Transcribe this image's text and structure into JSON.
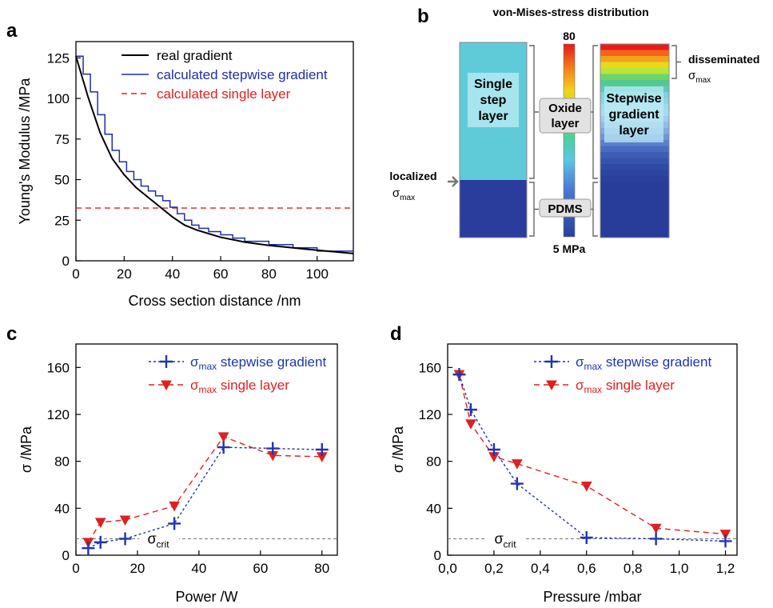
{
  "chart_data": [
    {
      "panel": "a",
      "type": "line",
      "xlabel": "Cross section distance /nm",
      "ylabel": "Young's Modulus /MPa",
      "xlim": [
        0,
        115
      ],
      "ylim": [
        0,
        135
      ],
      "xticks": [
        0,
        20,
        40,
        60,
        80,
        100
      ],
      "yticks": [
        0,
        25,
        50,
        75,
        100,
        125
      ],
      "legend_position": "top-right",
      "series": [
        {
          "name": "real gradient",
          "style": "solid",
          "color": "#000000",
          "x": [
            0,
            5,
            10,
            15,
            20,
            25,
            30,
            35,
            40,
            45,
            50,
            60,
            70,
            80,
            90,
            100,
            115
          ],
          "y": [
            126,
            101,
            79,
            63,
            53,
            45,
            39,
            33,
            27,
            22,
            19,
            14.5,
            11.5,
            9.5,
            8,
            6.5,
            4.5
          ]
        },
        {
          "name": "calculated stepwise gradient",
          "style": "step",
          "color": "#1f2fa8",
          "steps": [
            [
              0,
              3,
              126
            ],
            [
              3,
              6,
              115
            ],
            [
              6,
              9,
              104
            ],
            [
              9,
              12,
              90
            ],
            [
              12,
              15,
              78
            ],
            [
              15,
              18,
              68
            ],
            [
              18,
              21,
              61
            ],
            [
              21,
              24,
              55
            ],
            [
              24,
              27,
              50
            ],
            [
              27,
              30,
              46
            ],
            [
              30,
              33,
              43
            ],
            [
              33,
              36,
              40
            ],
            [
              36,
              39,
              37
            ],
            [
              39,
              42,
              33
            ],
            [
              42,
              45,
              29
            ],
            [
              45,
              48,
              25
            ],
            [
              48,
              51,
              22
            ],
            [
              51,
              55,
              20
            ],
            [
              55,
              60,
              18
            ],
            [
              60,
              65,
              16
            ],
            [
              65,
              70,
              14
            ],
            [
              70,
              80,
              12
            ],
            [
              80,
              90,
              10
            ],
            [
              90,
              100,
              8
            ],
            [
              100,
              115,
              6
            ]
          ]
        },
        {
          "name": "calculated single layer",
          "style": "dashed",
          "color": "#e02020",
          "x": [
            0,
            115
          ],
          "y": [
            32.5,
            32.5
          ]
        }
      ]
    },
    {
      "panel": "b",
      "type": "heatmap",
      "title": "von-Mises-stress distribution",
      "colorbar_max": "80",
      "colorbar_min": "5 MPa",
      "labels": {
        "single": [
          "Single",
          "step",
          "layer"
        ],
        "oxide": [
          "Oxide",
          "layer"
        ],
        "pdms": "PDMS",
        "stepwise": [
          "Stepwise",
          "gradient",
          "layer"
        ],
        "localized": "localized",
        "disseminated": "disseminated",
        "sigma": "σ",
        "sigma_sub": "max"
      }
    },
    {
      "panel": "c",
      "type": "line",
      "xlabel": "Power /W",
      "ylabel": "σ /MPa",
      "xlim": [
        0,
        85
      ],
      "ylim": [
        0,
        180
      ],
      "xticks": [
        0,
        20,
        40,
        60,
        80
      ],
      "yticks": [
        0,
        40,
        80,
        120,
        160
      ],
      "legend_position": "top-right",
      "crit_level": 14,
      "crit_label": "σ",
      "crit_sub": "crit",
      "series": [
        {
          "name": "stepwise gradient",
          "name_prefix": "σ",
          "name_sub": "max",
          "marker": "plus",
          "style": "dotted",
          "color": "#2035b0",
          "x": [
            4,
            8,
            16,
            32,
            48,
            64,
            80
          ],
          "y": [
            6,
            11,
            14,
            27,
            92,
            91,
            90
          ]
        },
        {
          "name": "single layer",
          "name_prefix": "σ",
          "name_sub": "max",
          "marker": "triangle-down",
          "style": "dashed",
          "color": "#e02020",
          "x": [
            4,
            8,
            16,
            32,
            48,
            64,
            80
          ],
          "y": [
            11,
            28,
            30,
            42,
            101,
            85,
            84
          ]
        }
      ]
    },
    {
      "panel": "d",
      "type": "line",
      "xlabel": "Pressure /mbar",
      "ylabel": "σ /MPa",
      "xlim": [
        0,
        1.25
      ],
      "ylim": [
        0,
        180
      ],
      "xticks": [
        0,
        0.2,
        0.4,
        0.6,
        0.8,
        1.0,
        1.2
      ],
      "xtick_labels": [
        "0,0",
        "0,2",
        "0,4",
        "0,6",
        "0,8",
        "1,0",
        "1,2"
      ],
      "yticks": [
        0,
        40,
        80,
        120,
        160
      ],
      "legend_position": "top-right",
      "crit_level": 14,
      "crit_label": "σ",
      "crit_sub": "crit",
      "series": [
        {
          "name": "stepwise gradient",
          "name_prefix": "σ",
          "name_sub": "max",
          "marker": "plus",
          "style": "dotted",
          "color": "#2035b0",
          "x": [
            0.05,
            0.1,
            0.2,
            0.3,
            0.6,
            0.9,
            1.2
          ],
          "y": [
            154,
            124,
            90,
            61,
            15,
            14,
            12
          ]
        },
        {
          "name": "single layer",
          "name_prefix": "σ",
          "name_sub": "max",
          "marker": "triangle-down",
          "style": "dashed",
          "color": "#e02020",
          "x": [
            0.05,
            0.1,
            0.2,
            0.3,
            0.6,
            0.9,
            1.2
          ],
          "y": [
            154,
            112,
            84,
            78,
            59,
            23,
            18
          ]
        }
      ]
    }
  ],
  "panel_letters": [
    "a",
    "b",
    "c",
    "d"
  ]
}
